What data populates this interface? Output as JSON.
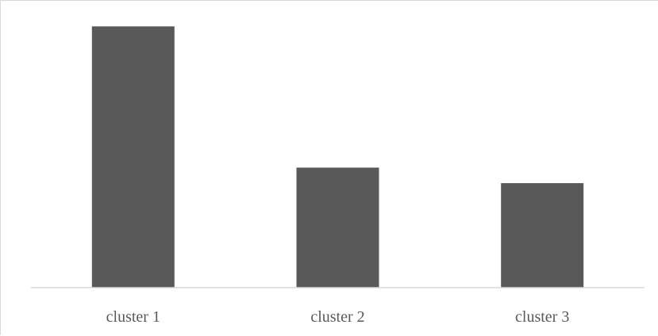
{
  "chart_data": {
    "type": "bar",
    "title": "",
    "xlabel": "",
    "ylabel": "",
    "categories": [
      "cluster 1",
      "cluster 2",
      "cluster 3"
    ],
    "series": [
      {
        "values": [
          285,
          131,
          114
        ]
      }
    ],
    "ylim": [
      0,
      300
    ],
    "grid": false,
    "legend": "none",
    "colors": {
      "bar": "#595959",
      "axis": "#d9d9d9",
      "text": "#595959",
      "background": "#ffffff"
    }
  }
}
